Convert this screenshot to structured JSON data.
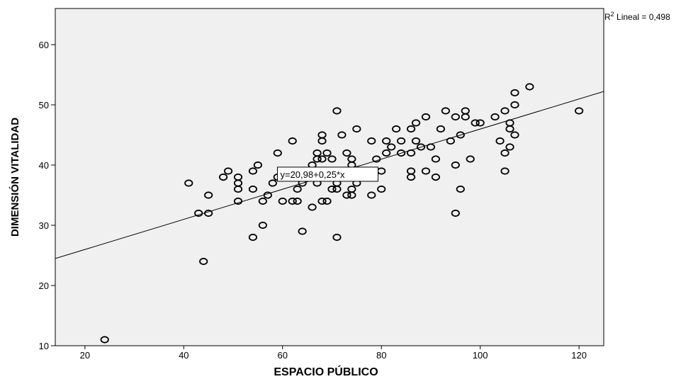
{
  "chart_data": {
    "type": "scatter",
    "xlabel": "ESPACIO PÚBLICO",
    "ylabel": "DIMENSIÓN VITALIDAD",
    "xlim": [
      14,
      125
    ],
    "ylim": [
      10,
      66
    ],
    "xticks": [
      20,
      40,
      60,
      80,
      100,
      120
    ],
    "yticks": [
      10,
      20,
      30,
      40,
      50,
      60
    ],
    "grid": false,
    "background": "#f0f0f0",
    "marker_color": "#000000",
    "fit": {
      "intercept": 20.98,
      "slope": 0.25,
      "equation_label": "y=20,98+0,25*x"
    },
    "r2_label": {
      "prefix": "R",
      "sup": "2",
      "suffix": " Lineal = 0,498"
    },
    "points": [
      [
        24,
        11
      ],
      [
        44,
        24
      ],
      [
        43,
        32
      ],
      [
        45,
        32
      ],
      [
        41,
        37
      ],
      [
        45,
        35
      ],
      [
        48,
        38
      ],
      [
        49,
        39
      ],
      [
        51,
        38
      ],
      [
        51,
        37
      ],
      [
        51,
        36
      ],
      [
        51,
        34
      ],
      [
        54,
        39
      ],
      [
        55,
        40
      ],
      [
        54,
        36
      ],
      [
        54,
        28
      ],
      [
        56,
        34
      ],
      [
        56,
        30
      ],
      [
        57,
        35
      ],
      [
        58,
        37
      ],
      [
        59,
        38
      ],
      [
        59,
        42
      ],
      [
        60,
        34
      ],
      [
        62,
        44
      ],
      [
        62,
        34
      ],
      [
        63,
        34
      ],
      [
        63,
        36
      ],
      [
        64,
        37
      ],
      [
        64,
        29
      ],
      [
        65,
        38
      ],
      [
        66,
        40
      ],
      [
        66,
        33
      ],
      [
        67,
        41
      ],
      [
        67,
        42
      ],
      [
        67,
        37
      ],
      [
        68,
        45
      ],
      [
        68,
        44
      ],
      [
        68,
        41
      ],
      [
        68,
        34
      ],
      [
        69,
        42
      ],
      [
        69,
        34
      ],
      [
        69,
        39
      ],
      [
        70,
        41
      ],
      [
        70,
        36
      ],
      [
        70,
        38
      ],
      [
        71,
        49
      ],
      [
        71,
        38
      ],
      [
        71,
        37
      ],
      [
        71,
        36
      ],
      [
        71,
        28
      ],
      [
        72,
        45
      ],
      [
        72,
        39
      ],
      [
        73,
        42
      ],
      [
        73,
        35
      ],
      [
        74,
        41
      ],
      [
        74,
        40
      ],
      [
        74,
        36
      ],
      [
        74,
        35
      ],
      [
        75,
        46
      ],
      [
        75,
        37
      ],
      [
        76,
        38
      ],
      [
        78,
        44
      ],
      [
        78,
        35
      ],
      [
        79,
        41
      ],
      [
        80,
        39
      ],
      [
        80,
        36
      ],
      [
        81,
        44
      ],
      [
        81,
        42
      ],
      [
        82,
        43
      ],
      [
        83,
        46
      ],
      [
        84,
        44
      ],
      [
        84,
        42
      ],
      [
        86,
        46
      ],
      [
        86,
        42
      ],
      [
        86,
        39
      ],
      [
        86,
        38
      ],
      [
        87,
        47
      ],
      [
        87,
        44
      ],
      [
        88,
        43
      ],
      [
        89,
        48
      ],
      [
        89,
        39
      ],
      [
        90,
        43
      ],
      [
        91,
        41
      ],
      [
        91,
        38
      ],
      [
        92,
        46
      ],
      [
        93,
        49
      ],
      [
        94,
        44
      ],
      [
        95,
        48
      ],
      [
        95,
        40
      ],
      [
        95,
        32
      ],
      [
        96,
        45
      ],
      [
        96,
        36
      ],
      [
        97,
        49
      ],
      [
        97,
        48
      ],
      [
        98,
        41
      ],
      [
        99,
        47
      ],
      [
        100,
        47
      ],
      [
        103,
        48
      ],
      [
        104,
        44
      ],
      [
        105,
        49
      ],
      [
        105,
        42
      ],
      [
        105,
        39
      ],
      [
        106,
        47
      ],
      [
        106,
        46
      ],
      [
        106,
        43
      ],
      [
        107,
        52
      ],
      [
        107,
        50
      ],
      [
        107,
        45
      ],
      [
        110,
        53
      ],
      [
        120,
        49
      ]
    ]
  }
}
